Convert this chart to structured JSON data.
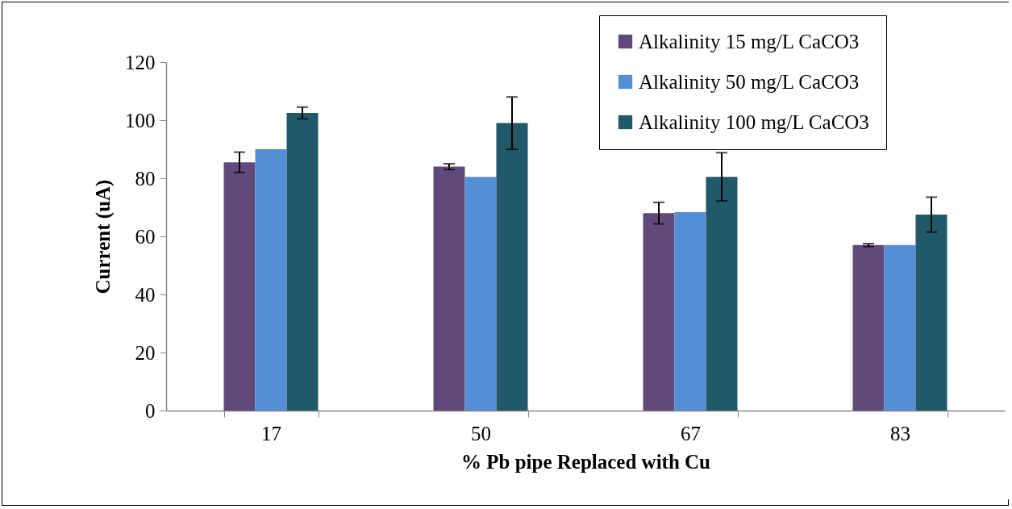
{
  "chart_data": {
    "type": "bar",
    "xlabel": "% Pb pipe Replaced with Cu",
    "ylabel": "Current (uA)",
    "categories": [
      "17",
      "50",
      "67",
      "83"
    ],
    "series": [
      {
        "name": "Alkalinity 15 mg/L CaCO3",
        "color": "#604a7b",
        "values": [
          85.5,
          84,
          68,
          57
        ],
        "errors": [
          3.5,
          1,
          3.7,
          0.5
        ]
      },
      {
        "name": "Alkalinity 50 mg/L CaCO3",
        "color": "#558ed5",
        "values": [
          90,
          80.5,
          68.3,
          57
        ]
      },
      {
        "name": "Alkalinity 100 mg/L CaCO3",
        "color": "#215968",
        "values": [
          102.5,
          99,
          80.5,
          67.5
        ],
        "errors": [
          2,
          9,
          8.3,
          6
        ]
      }
    ],
    "ylim": [
      0,
      120
    ],
    "yticks": [
      0,
      20,
      40,
      60,
      80,
      100,
      120
    ],
    "grid": false,
    "legend": "top right"
  }
}
